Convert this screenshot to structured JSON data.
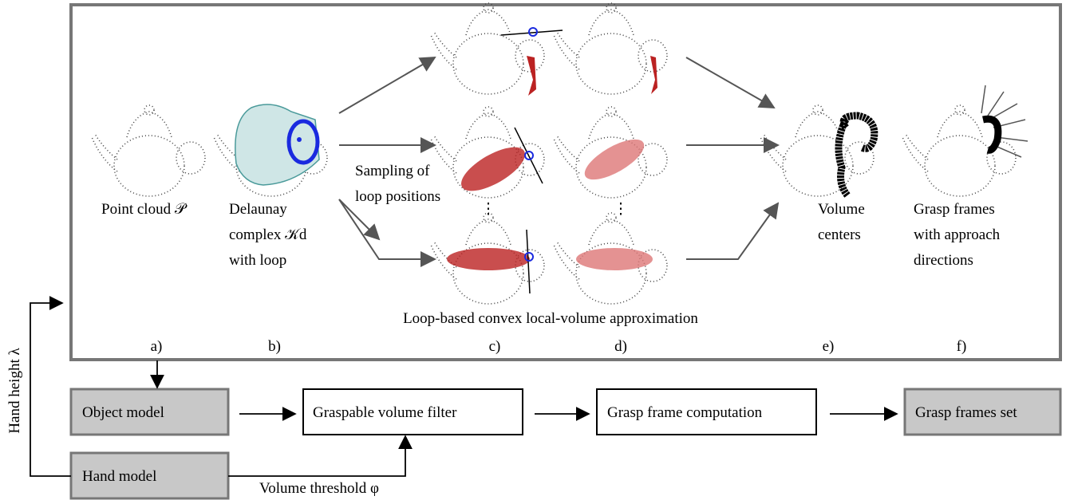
{
  "stages": {
    "a": {
      "label": [
        "Point cloud 𝒫"
      ],
      "tag": "a)"
    },
    "b": {
      "label": [
        "Delaunay",
        "complex 𝒦d",
        "with loop"
      ],
      "tag": "b)"
    },
    "c": {
      "label": [
        "Sampling of",
        "loop positions"
      ],
      "tag": "c)"
    },
    "d": {
      "tag": "d)"
    },
    "e": {
      "label": [
        "Volume",
        "centers"
      ],
      "tag": "e)"
    },
    "f": {
      "label": [
        "Grasp frames",
        "with approach",
        "directions"
      ],
      "tag": "f)"
    }
  },
  "caption": "Loop-based convex local-volume approximation",
  "pipeline": {
    "boxes": [
      "Object model",
      "Graspable volume filter",
      "Grasp frame computation",
      "Grasp frames set",
      "Hand model"
    ],
    "volume_threshold": "Volume threshold φ",
    "hand_height": "Hand height λ"
  }
}
